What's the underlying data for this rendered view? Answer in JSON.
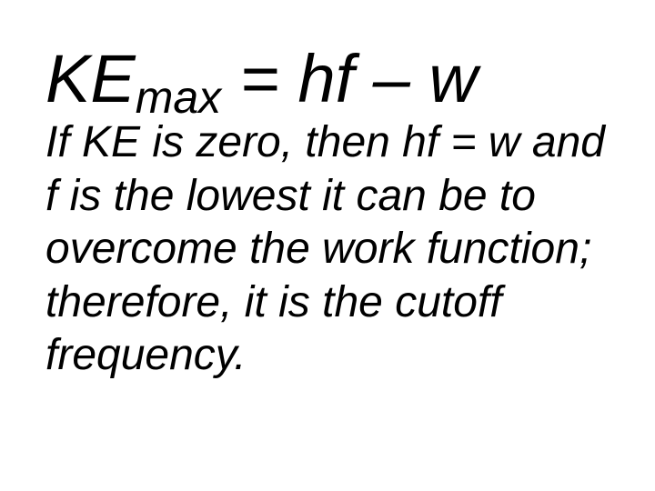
{
  "slide": {
    "equation": {
      "ke": "KE",
      "sub": "max",
      "rest": " = hf – w"
    },
    "body": "If KE is zero, then hf = w and f is the lowest it can be to overcome the work function; therefore, it is the cutoff frequency.",
    "colors": {
      "background": "#ffffff",
      "text": "#000000"
    },
    "typography": {
      "equation_main_fontsize": 74,
      "equation_sub_fontsize": 50,
      "body_fontsize": 48,
      "font_family": "Arial",
      "font_style": "italic"
    }
  }
}
